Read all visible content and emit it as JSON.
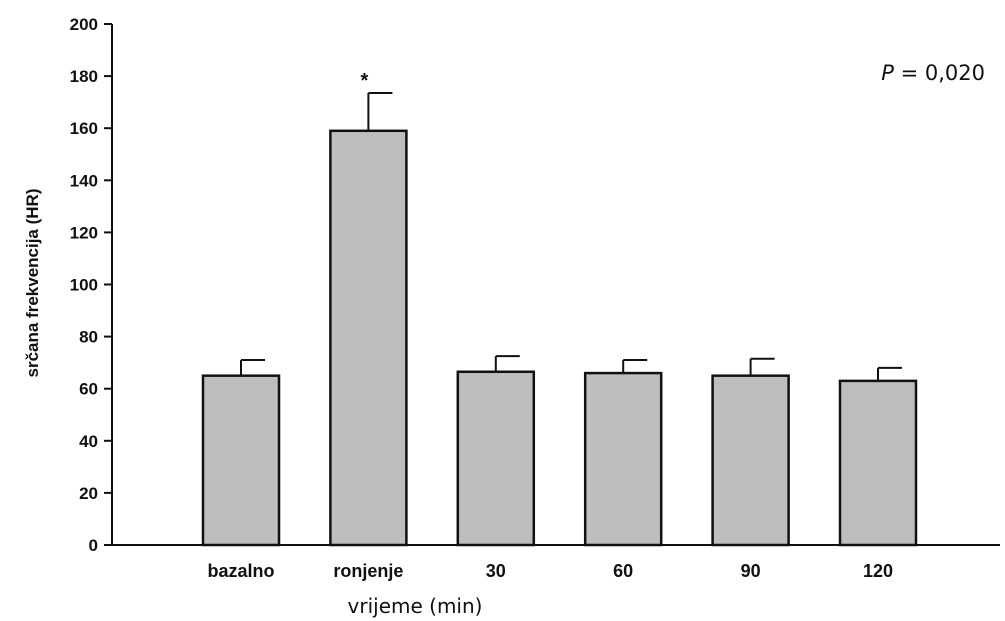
{
  "chart_data": {
    "type": "bar",
    "categories": [
      "bazalno",
      "ronjenje",
      "30",
      "60",
      "90",
      "120"
    ],
    "values": [
      65,
      159,
      66.5,
      66,
      65,
      63
    ],
    "error_upper": [
      71,
      173.5,
      72.5,
      71,
      71.5,
      68
    ],
    "significance": [
      "",
      "*",
      "",
      "",
      "",
      ""
    ],
    "xlabel": "vrijeme (min)",
    "ylabel": "srčana frekvencija (HR)",
    "ylim": [
      0,
      200
    ],
    "yticks": [
      "0",
      "20",
      "40",
      "60",
      "80",
      "100",
      "120",
      "140",
      "160",
      "180",
      "200"
    ],
    "annotation": {
      "prefix": "P",
      "text": " = 0,020"
    },
    "grid": false,
    "colors": {
      "bar_fill": "#bebebe",
      "bar_stroke": "#111111",
      "axis": "#111111"
    }
  }
}
